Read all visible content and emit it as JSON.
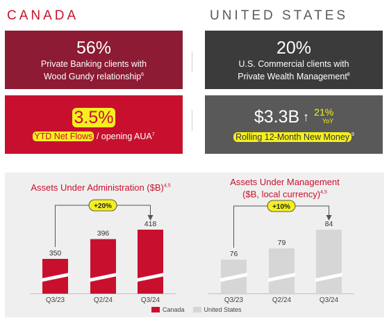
{
  "canada": {
    "region_title": "CANADA",
    "card1": {
      "value": "56%",
      "line1": "Private Banking clients with",
      "line2": "Wood Gundy relationship",
      "sup": "6"
    },
    "card2": {
      "value": "3.5%",
      "desc_highlight": "YTD Net Flows",
      "desc_rest": " / opening AUA",
      "sup": "7"
    }
  },
  "us": {
    "region_title": "UNITED STATES",
    "card1": {
      "value": "20%",
      "line1": "U.S. Commercial clients with",
      "line2": "Private Wealth Management",
      "sup": "8"
    },
    "card2": {
      "value": "$3.3B",
      "arrow": "↑",
      "growth": "21%",
      "growth_sub": "YoY",
      "desc": "Rolling 12-Month New Money",
      "sup": "9"
    }
  },
  "colors": {
    "canada_dark": "#8c1b33",
    "canada_bright": "#c8102e",
    "us_dark": "#3b3b3b",
    "us_mid": "#595959",
    "us_bar": "#d6d6d6",
    "highlight": "#f4ef20"
  },
  "charts": {
    "legend": {
      "canada": "Canada",
      "us": "United States"
    }
  },
  "chart_data": [
    {
      "type": "bar",
      "title": "Assets Under Administration ($B)",
      "title_sup": "4,5",
      "categories": [
        "Q3/23",
        "Q2/24",
        "Q3/24"
      ],
      "series": [
        {
          "name": "Canada",
          "values": [
            350,
            396,
            418
          ]
        }
      ],
      "value_labels": [
        "350",
        "396",
        "418"
      ],
      "annotation": "+20%",
      "axis_break": true,
      "color": "#c8102e"
    },
    {
      "type": "bar",
      "title_line1": "Assets Under Management",
      "title_line2": "($B, local currency)",
      "title_sup": "4,5",
      "categories": [
        "Q3/23",
        "Q2/24",
        "Q3/24"
      ],
      "series": [
        {
          "name": "United States",
          "values": [
            76,
            79,
            84
          ]
        }
      ],
      "value_labels": [
        "76",
        "79",
        "84"
      ],
      "annotation": "+10%",
      "axis_break": true,
      "color": "#d6d6d6"
    }
  ]
}
